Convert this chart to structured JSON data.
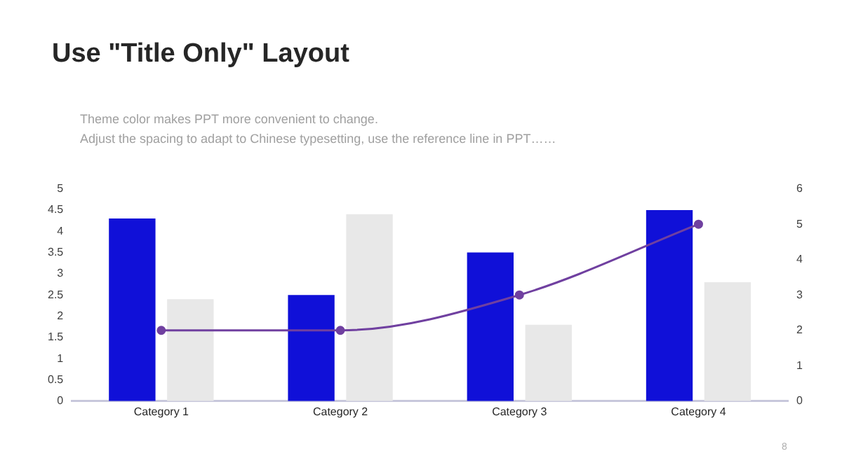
{
  "chart_data": {
    "type": "bar",
    "title": "Use \"Title Only\" Layout",
    "subtitle": "Theme color makes PPT more convenient to change.\nAdjust the spacing to adapt to Chinese typesetting, use the reference line in PPT……",
    "categories": [
      "Category 1",
      "Category 2",
      "Category 3",
      "Category 4"
    ],
    "series": [
      {
        "color": "#1010d8",
        "values": [
          4.3,
          2.5,
          3.5,
          4.5
        ]
      },
      {
        "color": "#e8e8e8",
        "values": [
          2.4,
          4.4,
          1.8,
          2.8
        ]
      },
      {
        "type": "line",
        "axis": "y2",
        "color": "#7040a0",
        "values": [
          2,
          2,
          3,
          5
        ]
      }
    ],
    "ylim": [
      0,
      5
    ],
    "yticks": [
      0,
      0.5,
      1,
      1.5,
      2,
      2.5,
      3,
      3.5,
      4,
      4.5,
      5
    ],
    "y2lim": [
      0,
      6
    ],
    "y2ticks": [
      0,
      1,
      2,
      3,
      4,
      5,
      6
    ],
    "grid": false,
    "legend": false,
    "marker": "circle",
    "annotations": [
      "8"
    ]
  }
}
